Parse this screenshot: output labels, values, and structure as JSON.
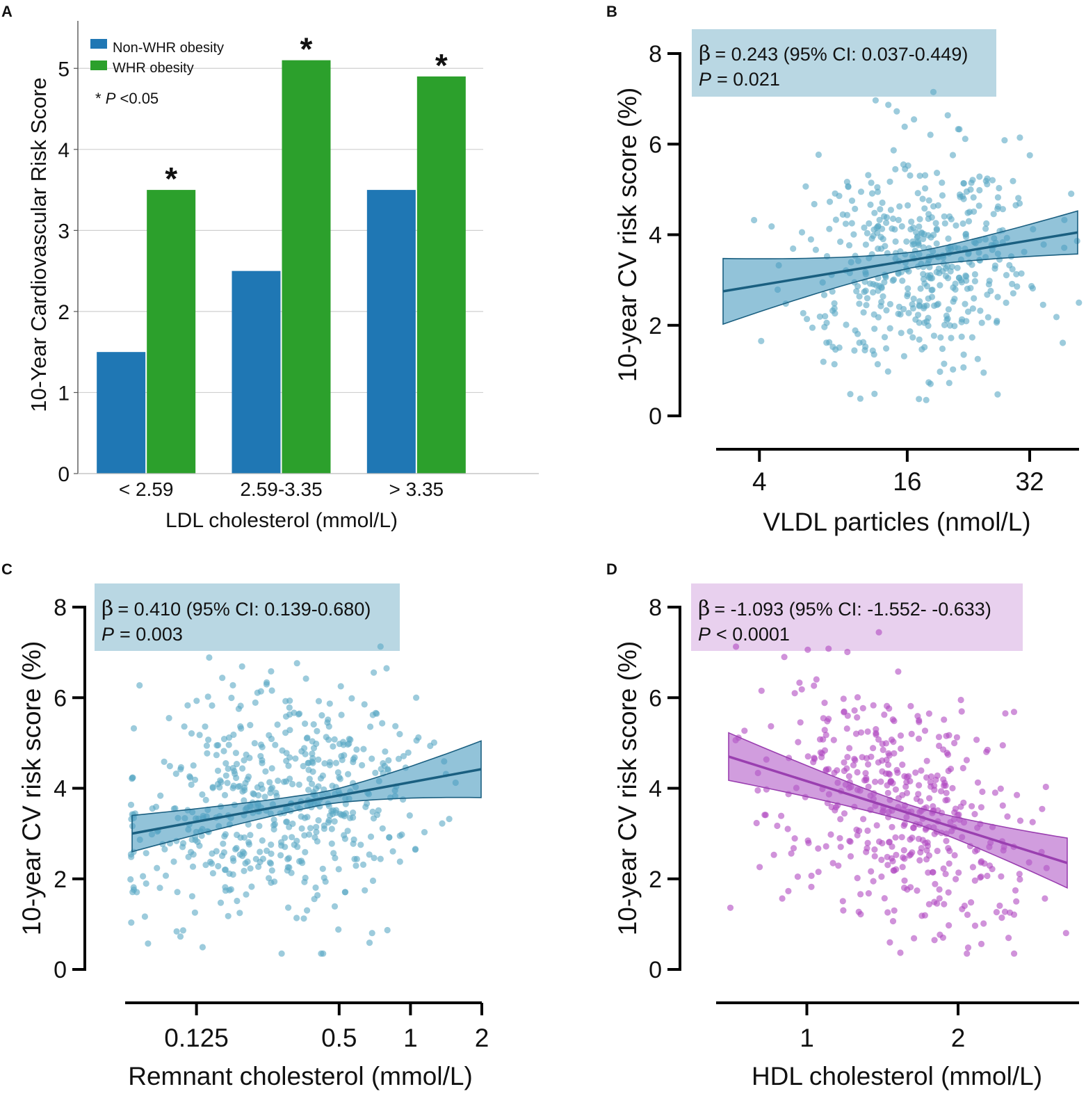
{
  "panels": [
    {
      "letter": "A"
    },
    {
      "letter": "B"
    },
    {
      "letter": "C"
    },
    {
      "letter": "D"
    }
  ],
  "chart_data": [
    {
      "panel": "A",
      "type": "bar",
      "categories": [
        "< 2.59",
        "2.59-3.35",
        "> 3.35"
      ],
      "series": [
        {
          "name": "Non-WHR obesity",
          "color": "#1f77b4",
          "values": [
            1.5,
            2.5,
            3.5
          ]
        },
        {
          "name": "WHR obesity",
          "color": "#2ca02c",
          "values": [
            3.5,
            5.1,
            4.9
          ]
        }
      ],
      "significance": [
        "*",
        "*",
        "*"
      ],
      "note_star": "*",
      "note_p": "P",
      "note_rest": "<0.05",
      "xlabel": "LDL cholesterol (mmol/L)",
      "ylabel": "10-Year Cardiovascular Risk Score",
      "ylim": [
        0,
        5.5
      ],
      "yticks": [
        0,
        1,
        2,
        3,
        4,
        5
      ],
      "grid": true,
      "legend": "top-left"
    },
    {
      "panel": "B",
      "type": "scatter",
      "xlabel": "VLDL particles (nmol/L)",
      "ylabel": "10-year CV risk score (%)",
      "xscale": "sqrt",
      "xlim": [
        2,
        40
      ],
      "xticks": [
        4,
        16,
        32
      ],
      "ylim": [
        0,
        8
      ],
      "yticks": [
        0,
        2,
        4,
        6,
        8
      ],
      "point_color": "#5aa9c4",
      "line_color": "#1a5f80",
      "band_color": "#4a9bbf",
      "box_color": "#b9d7e3",
      "regression": {
        "y_start": 2.75,
        "y_end": 4.05,
        "band_lo_start": 2.0,
        "band_hi_start": 3.45,
        "band_lo_end": 3.55,
        "band_hi_end": 4.5
      },
      "beta_symbol": "β",
      "beta_text": "= 0.243 (95% CI: 0.037-0.449)",
      "p_label": "P",
      "p_text": "= 0.021",
      "seed": 11,
      "n_points": 470
    },
    {
      "panel": "C",
      "type": "scatter",
      "xlabel": "Remnant cholesterol (mmol/L)",
      "ylabel": "10-year CV risk score (%)",
      "xscale": "log2",
      "xlim": [
        0.0625,
        2
      ],
      "xticks": [
        0.125,
        0.5,
        1,
        2
      ],
      "ylim": [
        0,
        8
      ],
      "yticks": [
        0,
        2,
        4,
        6,
        8
      ],
      "point_color": "#5aa9c4",
      "line_color": "#1a5f80",
      "band_color": "#4a9bbf",
      "box_color": "#b9d7e3",
      "regression": {
        "y_start": 3.0,
        "y_end": 4.42,
        "band_lo_start": 2.6,
        "band_hi_start": 3.4,
        "band_lo_end": 3.8,
        "band_hi_end": 5.05
      },
      "beta_symbol": "β",
      "beta_text": "= 0.410 (95% CI: 0.139-0.680)",
      "p_label": "P",
      "p_text": "= 0.003",
      "seed": 23,
      "n_points": 560
    },
    {
      "panel": "D",
      "type": "scatter",
      "xlabel": "HDL cholesterol (mmol/L)",
      "ylabel": "10-year CV risk score (%)",
      "xscale": "linear",
      "xlim": [
        0.4,
        2.8
      ],
      "xticks": [
        1,
        2
      ],
      "ylim": [
        0,
        8
      ],
      "yticks": [
        0,
        2,
        4,
        6,
        8
      ],
      "point_color": "#b04ac2",
      "line_color": "#9a3fb0",
      "band_color": "#b35cc8",
      "box_color": "#e8d0ee",
      "regression": {
        "y_start": 4.7,
        "y_end": 2.35,
        "band_lo_start": 4.2,
        "band_hi_start": 5.25,
        "band_lo_end": 1.8,
        "band_hi_end": 2.9
      },
      "beta_symbol": "β",
      "beta_text": "= -1.093 (95% CI: -1.552- -0.633)",
      "p_label": "P",
      "p_text": "< 0.0001",
      "seed": 37,
      "n_points": 450
    }
  ]
}
